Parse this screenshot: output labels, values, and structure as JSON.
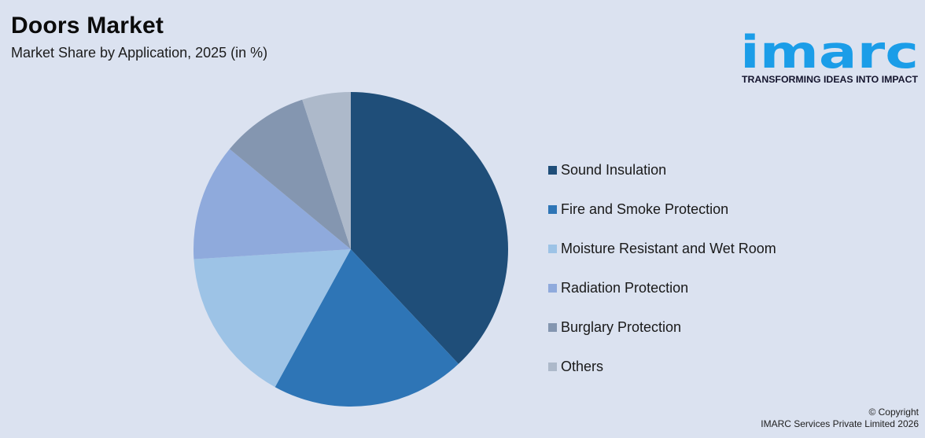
{
  "page": {
    "background_color": "#dbe2f0"
  },
  "header": {
    "title": "Doors Market",
    "subtitle": "Market Share by Application, 2025 (in %)"
  },
  "logo": {
    "word": "imarc",
    "tagline": "TRANSFORMING IDEAS INTO IMPACT",
    "brand_color": "#1b9de8",
    "tagline_color": "#15152e"
  },
  "chart_data": {
    "type": "pie",
    "title": "Doors Market",
    "subtitle": "Market Share by Application, 2025 (in %)",
    "unit": "%",
    "start_angle_deg": 0,
    "direction": "clockwise",
    "legend_position": "right",
    "data_labels_shown": false,
    "slices": [
      {
        "label": "Sound Insulation",
        "value": 38,
        "color": "#1F4E79"
      },
      {
        "label": "Fire and Smoke Protection",
        "value": 20,
        "color": "#2E75B6"
      },
      {
        "label": "Moisture Resistant and Wet Room",
        "value": 16,
        "color": "#9DC3E6"
      },
      {
        "label": "Radiation Protection",
        "value": 12,
        "color": "#8FAADC"
      },
      {
        "label": "Burglary Protection",
        "value": 9,
        "color": "#8496B0"
      },
      {
        "label": "Others",
        "value": 5,
        "color": "#ADB9CA"
      }
    ]
  },
  "footer": {
    "line1": "© Copyright",
    "line2": "IMARC Services Private Limited 2026"
  }
}
